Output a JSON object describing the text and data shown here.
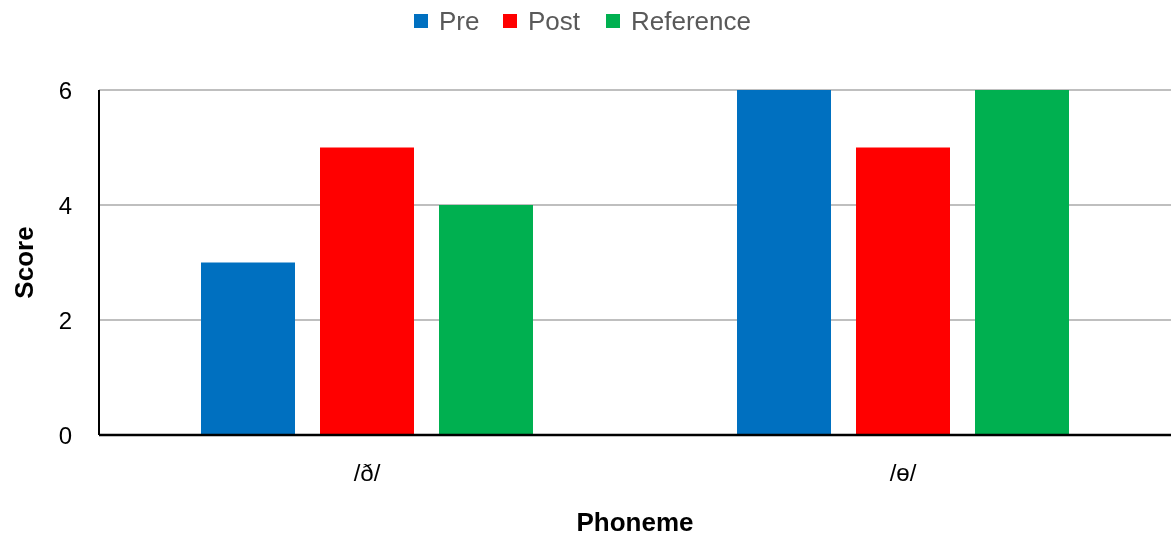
{
  "chart_data": {
    "type": "bar",
    "xlabel": "Phoneme",
    "ylabel": "Score",
    "categories": [
      "/ð/",
      "/ɵ/"
    ],
    "series": [
      {
        "name": "Pre",
        "color": "#0070c0",
        "values": [
          3,
          6
        ]
      },
      {
        "name": "Post",
        "color": "#ff0000",
        "values": [
          5,
          5
        ]
      },
      {
        "name": "Reference",
        "color": "#00b050",
        "values": [
          4,
          6
        ]
      }
    ],
    "ylim": [
      0,
      6
    ],
    "yticks": [
      0,
      2,
      4,
      6
    ],
    "grid": "y",
    "legend": "top"
  }
}
